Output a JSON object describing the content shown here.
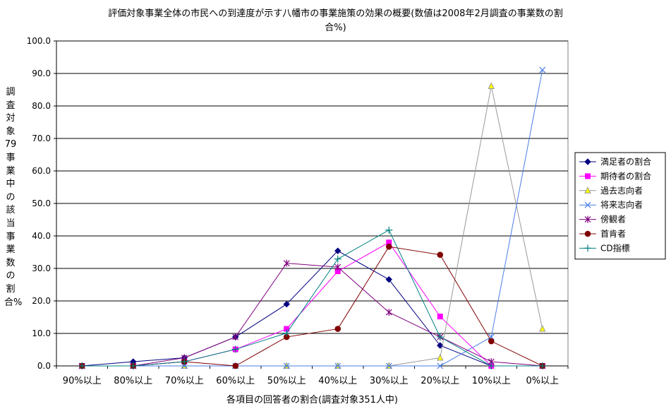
{
  "chart_data": {
    "type": "line",
    "title": [
      "評価対象事業全体の市民への到達度が示す八幡市の事業施策の効果の概要(数値は2008年2月調査の事業数の割",
      "合%)"
    ],
    "ylabel": "調査対象79事業中の該当事業数の割合%",
    "xlabel": "各項目の回答者の割合(調査対象351人中)",
    "ylim": [
      0,
      100
    ],
    "yticks": [
      "0.0",
      "10.0",
      "20.0",
      "30.0",
      "40.0",
      "50.0",
      "60.0",
      "70.0",
      "80.0",
      "90.0",
      "100.0"
    ],
    "categories": [
      "90%以上",
      "80%以上",
      "70%以上",
      "60%以上",
      "50%以上",
      "40%以上",
      "30%以上",
      "20%以上",
      "10%以上",
      "0%以上"
    ],
    "grid": true,
    "legend_position": "right",
    "series": [
      {
        "name": "満足者の割合",
        "color": "#000080",
        "marker": "diamond",
        "values": [
          0,
          1.3,
          2.5,
          8.9,
          19.0,
          35.4,
          26.6,
          6.3,
          0,
          0
        ]
      },
      {
        "name": "期待者の割合",
        "color": "#ff00ff",
        "marker": "square",
        "values": [
          0,
          0,
          1.3,
          5.1,
          11.4,
          29.1,
          38.0,
          15.2,
          0,
          0
        ]
      },
      {
        "name": "過去志向者",
        "color": "#999999",
        "marker_fill": "#ffff00",
        "marker": "triangle",
        "values": [
          0,
          0,
          0,
          0,
          0,
          0,
          0,
          2.5,
          86.1,
          11.4
        ]
      },
      {
        "name": "将来志向者",
        "color": "#4a7ee6",
        "marker": "x",
        "values": [
          0,
          0,
          0,
          0,
          0,
          0,
          0,
          0,
          8.9,
          91.1
        ]
      },
      {
        "name": "傍観者",
        "color": "#800080",
        "marker": "star",
        "values": [
          0,
          0,
          2.5,
          8.9,
          31.6,
          30.4,
          16.5,
          8.9,
          1.3,
          0
        ]
      },
      {
        "name": "首肯者",
        "color": "#800000",
        "marker": "circle",
        "values": [
          0,
          0,
          1.3,
          0,
          8.9,
          11.4,
          36.7,
          34.2,
          7.6,
          0
        ]
      },
      {
        "name": "CD指標",
        "color": "#008080",
        "marker": "plus",
        "values": [
          0,
          0,
          1.3,
          5.1,
          10.1,
          32.9,
          41.8,
          8.9,
          0,
          0
        ]
      }
    ]
  }
}
